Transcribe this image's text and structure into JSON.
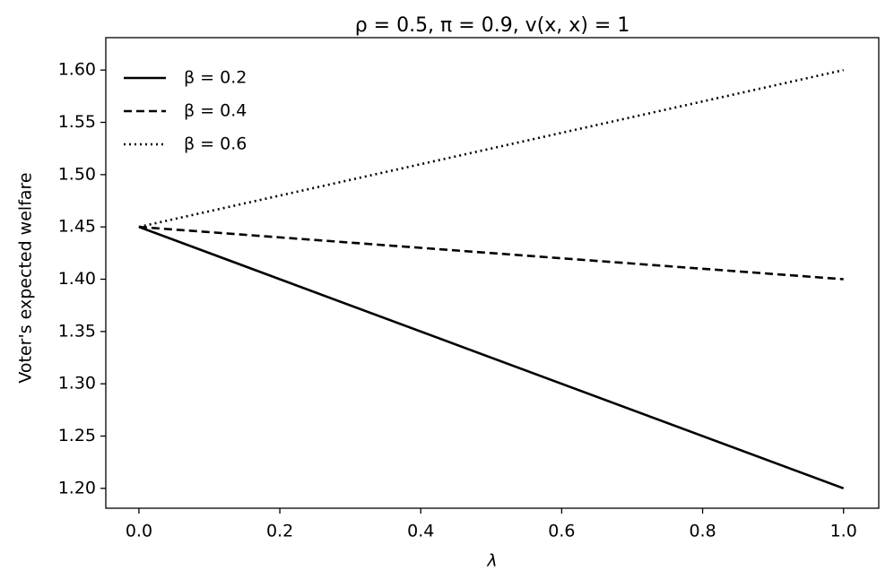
{
  "chart_data": {
    "type": "line",
    "title": "ρ = 0.5, π = 0.9, v(x, x) = 1",
    "xlabel": "λ",
    "ylabel": "Voter's expected welfare",
    "x": [
      0,
      1
    ],
    "series": [
      {
        "name": "β = 0.2",
        "color": "#000000",
        "linestyle": "solid",
        "values": [
          1.45,
          1.2
        ]
      },
      {
        "name": "β = 0.4",
        "color": "#000000",
        "linestyle": "dashed",
        "values": [
          1.45,
          1.4
        ]
      },
      {
        "name": "β = 0.6",
        "color": "#000000",
        "linestyle": "dotted",
        "values": [
          1.45,
          1.6
        ]
      }
    ],
    "xlim": [
      -0.047,
      1.05
    ],
    "xticks": [
      {
        "value": 0,
        "label": "0.0"
      },
      0.2,
      0.4,
      0.6,
      0.8,
      {
        "value": 1,
        "label": "1.0"
      }
    ],
    "ylim": [
      1.181,
      1.631
    ],
    "yticks": [
      {
        "value": 1.2,
        "label": "1.20"
      },
      1.25,
      {
        "value": 1.3,
        "label": "1.30"
      },
      1.35,
      {
        "value": 1.4,
        "label": "1.40"
      },
      1.45,
      {
        "value": 1.5,
        "label": "1.50"
      },
      1.55,
      {
        "value": 1.6,
        "label": "1.60"
      }
    ],
    "grid": false,
    "legend": "upper left"
  }
}
